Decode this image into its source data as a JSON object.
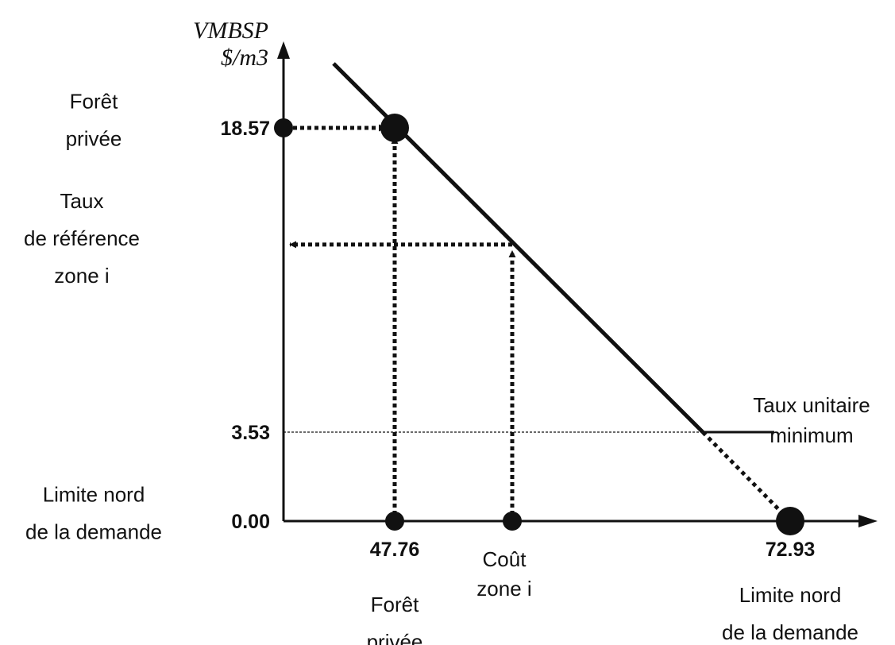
{
  "chart_data": {
    "type": "line",
    "ylabel": [
      "VMBSP",
      "$/m3"
    ],
    "xlabel": "",
    "series": [
      {
        "values": [
          [
            40,
            21.9
          ],
          [
            69.3,
            3.53
          ]
        ]
      },
      {
        "values": [
          [
            69.3,
            3.53
          ],
          [
            72.93,
            0
          ]
        ]
      },
      {
        "values": [
          [
            69.3,
            3.53
          ],
          [
            72.2,
            3.53
          ]
        ]
      }
    ],
    "points": [
      {
        "x": 47.76,
        "y": 18.57
      },
      {
        "x": 72.93,
        "y": 0
      },
      {
        "x": 47.76,
        "y": 0
      },
      {
        "x": 50.5,
        "y": 0
      }
    ],
    "y_ticks": [
      {
        "value": 18.57,
        "label": "18.57",
        "side_label": [
          "Forêt",
          "privée"
        ]
      },
      {
        "value": 3.53,
        "label": "3.53",
        "side_label": []
      },
      {
        "value": 0,
        "label": "0.00",
        "side_label": [
          "Limite nord",
          "de la demande"
        ]
      }
    ],
    "y_side_labels_extra": [
      {
        "value": 12.8,
        "lines": [
          "Taux",
          "de référence",
          "zone i"
        ]
      }
    ],
    "x_ticks": [
      {
        "value": 47.76,
        "label": "47.76",
        "sub_label": [
          "Forêt",
          "privée"
        ]
      },
      {
        "value": 50.5,
        "label": "",
        "sub_label": [
          "Coût",
          "zone i"
        ]
      },
      {
        "value": 72.93,
        "label": "72.93",
        "sub_label": [
          "Limite nord",
          "de la demande"
        ]
      }
    ],
    "annotations": [
      {
        "text": [
          "Taux unitaire",
          "minimum"
        ]
      }
    ]
  }
}
